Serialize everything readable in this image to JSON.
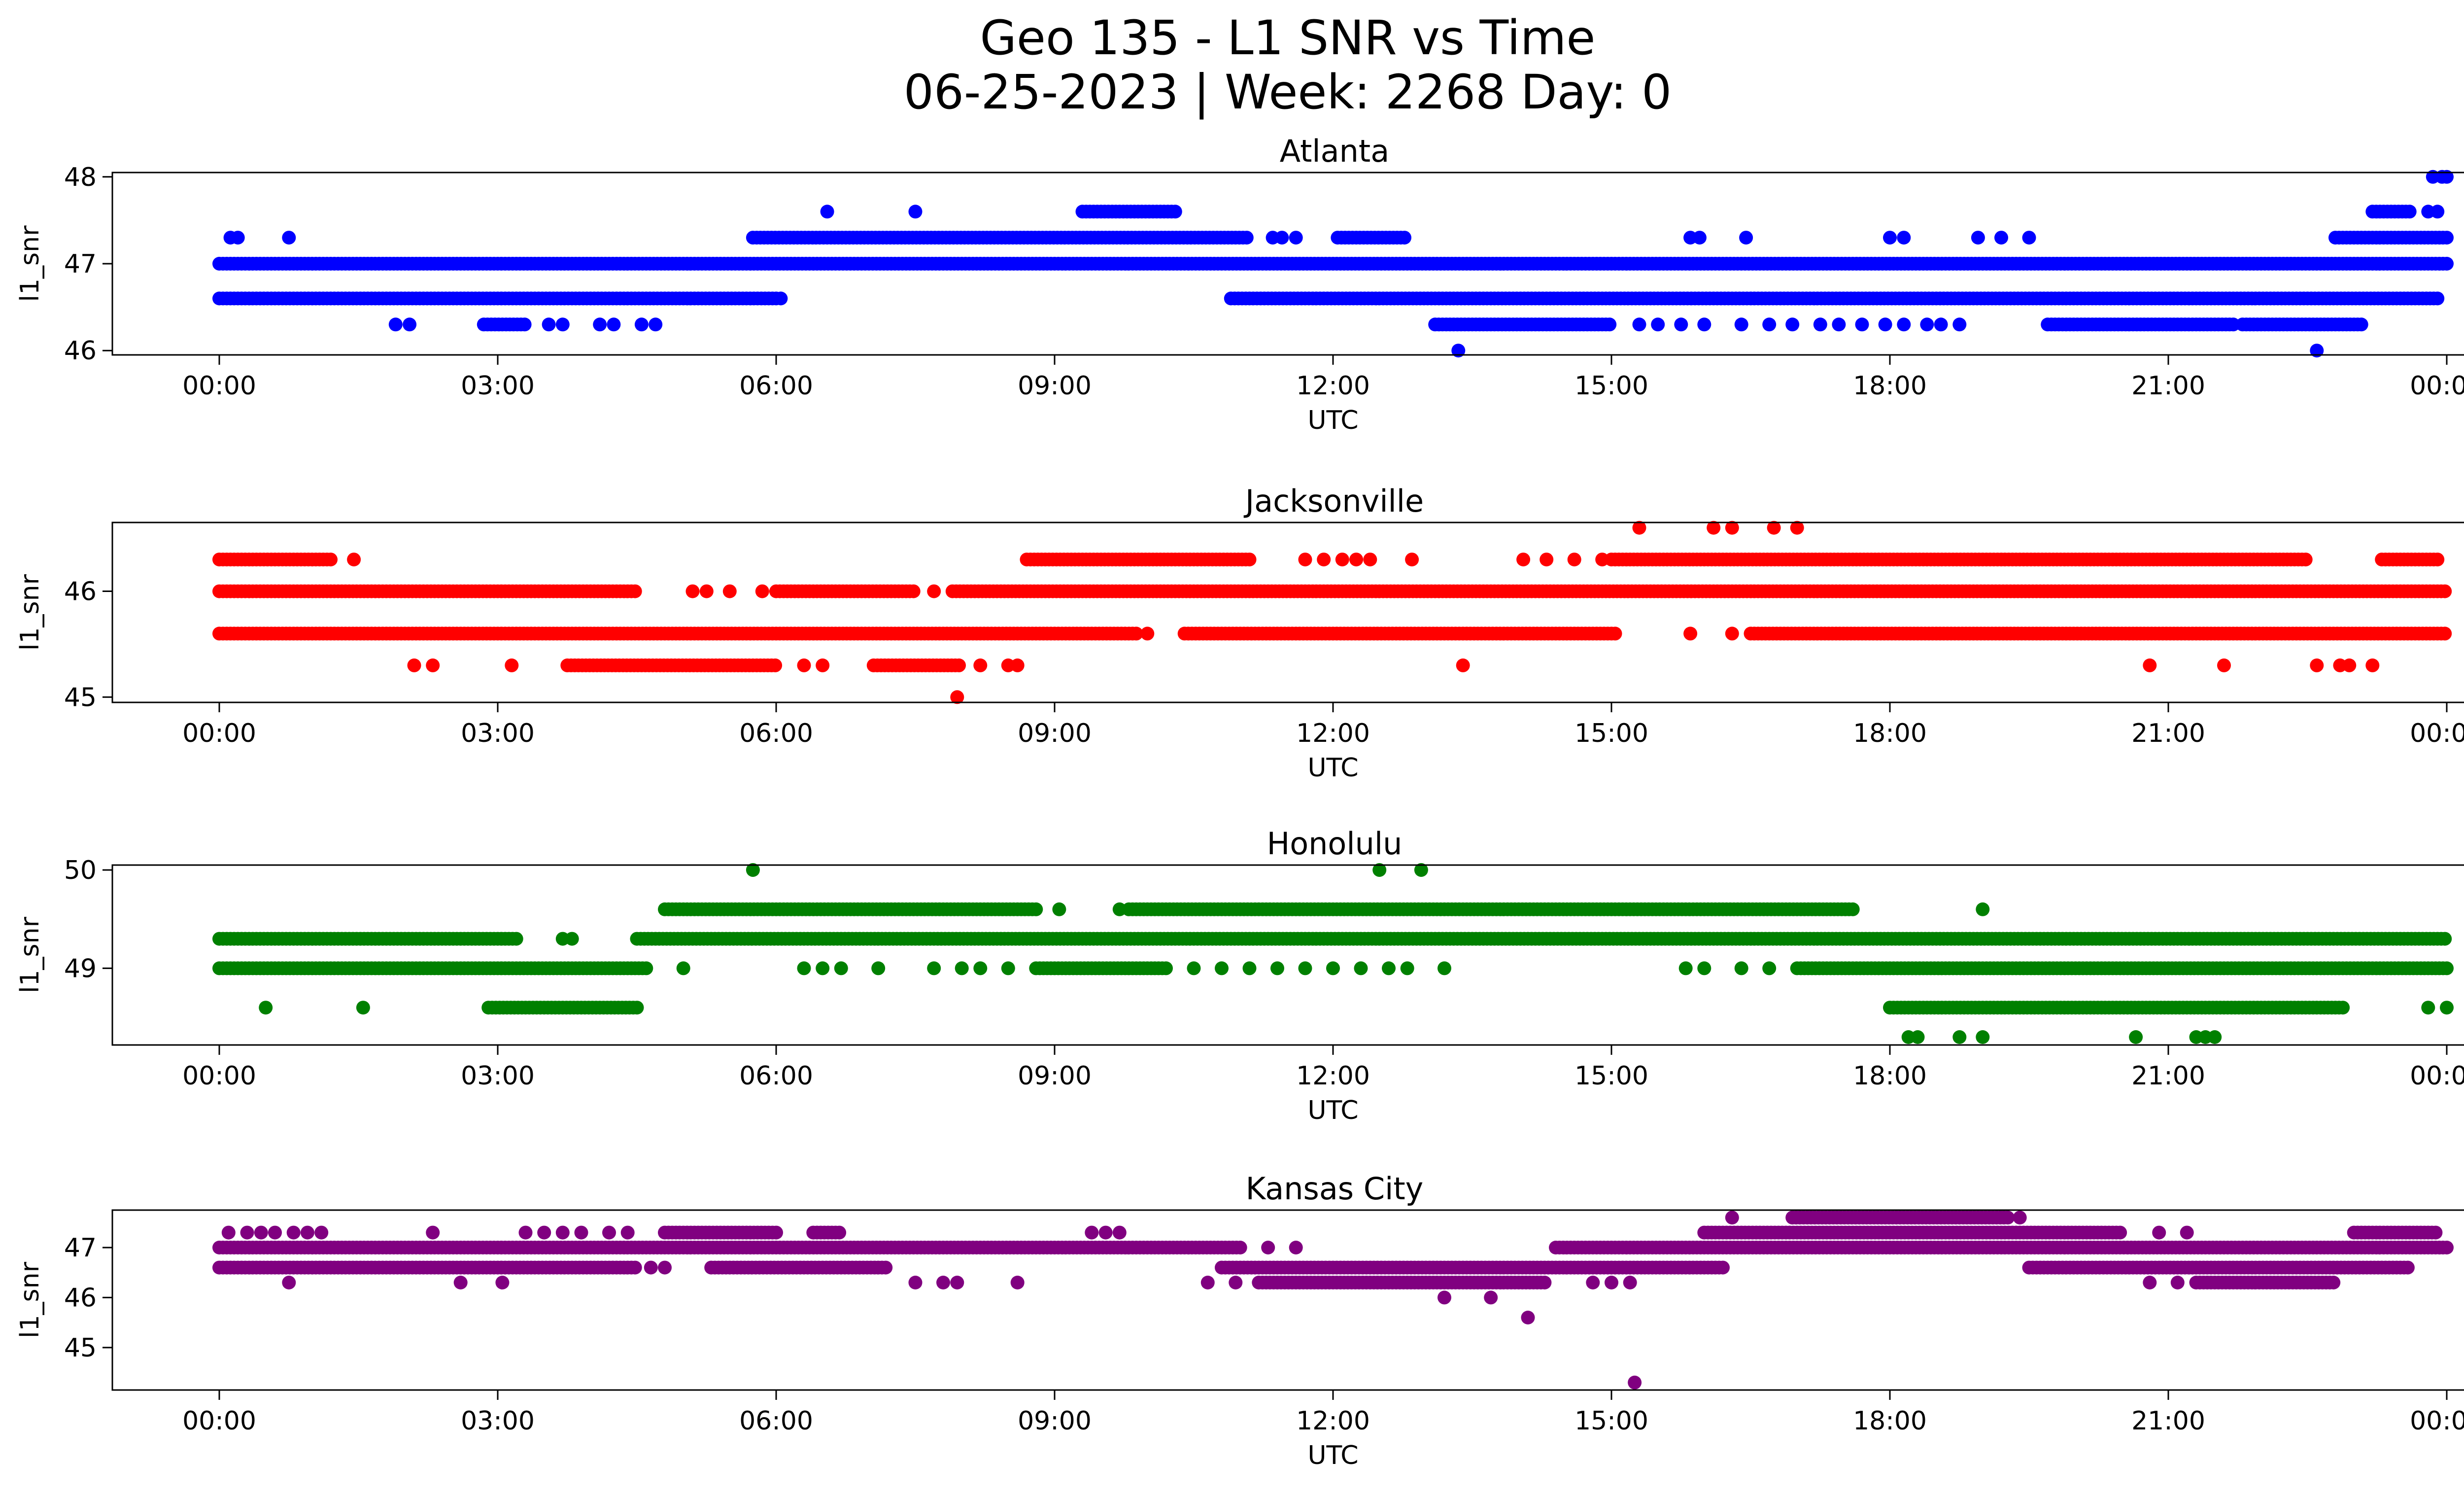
{
  "figure": {
    "title_line1": "Geo 135 - L1 SNR vs Time",
    "title_line2": "06-25-2023 | Week: 2268 Day: 0"
  },
  "chart_data": [
    {
      "type": "scatter",
      "title": "Atlanta",
      "color": "#0000ff",
      "xlabel": "UTC",
      "ylabel": "l1_snr",
      "xlim": [
        "00:00",
        "24:00"
      ],
      "ylim": [
        45.95,
        48.05
      ],
      "xticks": [
        "00:00",
        "03:00",
        "06:00",
        "09:00",
        "12:00",
        "15:00",
        "18:00",
        "21:00",
        "00:00"
      ],
      "yticks": [
        "46",
        "47",
        "48"
      ],
      "levels": [
        46.0,
        46.3,
        46.6,
        47.0,
        47.3,
        47.6,
        48.0
      ],
      "series": [
        {
          "y": 46.6,
          "ranges": [
            [
              0.0,
              6.0
            ],
            [
              10.9,
              23.9
            ]
          ],
          "x": [
            6.05
          ]
        },
        {
          "y": 47.0,
          "ranges": [
            [
              0.0,
              24.0
            ]
          ],
          "x": []
        },
        {
          "y": 46.3,
          "ranges": [
            [
              2.85,
              3.3
            ],
            [
              13.1,
              15.0
            ],
            [
              19.7,
              21.7
            ],
            [
              21.8,
              23.1
            ]
          ],
          "x": [
            1.9,
            2.05,
            3.55,
            3.7,
            4.1,
            4.25,
            4.55,
            4.7,
            15.3,
            15.5,
            15.75,
            16.0,
            16.4,
            16.7,
            16.95,
            17.25,
            17.45,
            17.7,
            17.95,
            18.15,
            18.4,
            18.55,
            18.75
          ]
        },
        {
          "y": 47.3,
          "ranges": [
            [
              5.75,
              11.1
            ],
            [
              12.05,
              12.8
            ],
            [
              22.8,
              24.0
            ]
          ],
          "x": [
            0.12,
            0.2,
            0.75,
            11.35,
            11.45,
            11.6,
            15.85,
            15.95,
            16.45,
            18.0,
            18.15,
            18.95,
            19.2,
            19.5
          ]
        },
        {
          "y": 47.6,
          "ranges": [
            [
              9.3,
              10.3
            ],
            [
              23.2,
              23.6
            ]
          ],
          "x": [
            6.55,
            7.5,
            23.8,
            23.9
          ]
        },
        {
          "y": 46.0,
          "x": [
            13.35,
            22.6
          ]
        },
        {
          "y": 48.0,
          "x": [
            23.85,
            23.95,
            24.0
          ]
        }
      ]
    },
    {
      "type": "scatter",
      "title": "Jacksonville",
      "color": "#ff0000",
      "xlabel": "UTC",
      "ylabel": "l1_snr",
      "xlim": [
        "00:00",
        "24:00"
      ],
      "ylim": [
        44.95,
        46.65
      ],
      "xticks": [
        "00:00",
        "03:00",
        "06:00",
        "09:00",
        "12:00",
        "15:00",
        "18:00",
        "21:00",
        "00:00"
      ],
      "yticks": [
        "45",
        "46"
      ],
      "levels": [
        45.0,
        45.3,
        45.6,
        46.0,
        46.3,
        46.6
      ],
      "series": [
        {
          "y": 46.0,
          "ranges": [
            [
              0.0,
              4.5
            ],
            [
              6.0,
              7.5
            ],
            [
              7.9,
              24.0
            ]
          ],
          "x": [
            5.1,
            5.25,
            5.5,
            5.85,
            7.7
          ]
        },
        {
          "y": 45.6,
          "ranges": [
            [
              0.0,
              9.9
            ],
            [
              10.4,
              15.05
            ],
            [
              16.5,
              24.0
            ]
          ],
          "x": [
            10.0,
            15.85,
            16.3
          ]
        },
        {
          "y": 46.3,
          "ranges": [
            [
              0.0,
              1.2
            ],
            [
              8.7,
              11.1
            ],
            [
              15.0,
              22.5
            ],
            [
              23.3,
              23.9
            ]
          ],
          "x": [
            1.45,
            11.7,
            11.9,
            12.1,
            12.25,
            12.4,
            12.85,
            14.05,
            14.3,
            14.6,
            14.9
          ]
        },
        {
          "y": 45.3,
          "ranges": [
            [
              3.75,
              6.0
            ],
            [
              7.05,
              8.0
            ]
          ],
          "x": [
            2.1,
            2.3,
            3.15,
            6.3,
            6.5,
            8.2,
            8.5,
            8.6,
            13.4,
            20.8,
            21.6,
            22.6,
            22.85,
            22.95,
            23.2
          ]
        },
        {
          "y": 46.6,
          "x": [
            15.3,
            16.1,
            16.3,
            16.75,
            17.0
          ]
        },
        {
          "y": 45.0,
          "x": [
            7.95
          ]
        }
      ]
    },
    {
      "type": "scatter",
      "title": "Honolulu",
      "color": "#008000",
      "xlabel": "UTC",
      "ylabel": "l1_snr",
      "xlim": [
        "00:00",
        "24:00"
      ],
      "ylim": [
        48.22,
        50.05
      ],
      "xticks": [
        "00:00",
        "03:00",
        "06:00",
        "09:00",
        "12:00",
        "15:00",
        "18:00",
        "21:00",
        "00:00"
      ],
      "yticks": [
        "49",
        "50"
      ],
      "levels": [
        48.3,
        48.6,
        49.0,
        49.3,
        49.6,
        50.0
      ],
      "series": [
        {
          "y": 49.3,
          "ranges": [
            [
              0.0,
              3.2
            ],
            [
              4.5,
              24.0
            ]
          ],
          "x": [
            3.7,
            3.8
          ]
        },
        {
          "y": 49.0,
          "ranges": [
            [
              0.0,
              4.6
            ],
            [
              8.8,
              10.2
            ],
            [
              17.0,
              24.0
            ]
          ],
          "x": [
            5.0,
            6.3,
            6.5,
            6.7,
            7.1,
            7.7,
            8.0,
            8.2,
            8.5,
            10.5,
            10.8,
            11.1,
            11.4,
            11.7,
            12.0,
            12.3,
            12.6,
            12.8,
            13.2,
            15.8,
            16.0,
            16.4,
            16.7
          ]
        },
        {
          "y": 49.6,
          "ranges": [
            [
              4.8,
              8.8
            ],
            [
              9.8,
              17.6
            ]
          ],
          "x": [
            9.05,
            9.7,
            19.0
          ]
        },
        {
          "y": 48.6,
          "ranges": [
            [
              2.9,
              4.5
            ],
            [
              18.0,
              22.9
            ]
          ],
          "x": [
            0.5,
            1.55,
            23.8,
            24.0
          ]
        },
        {
          "y": 48.3,
          "x": [
            18.2,
            18.3,
            18.75,
            19.0,
            20.65,
            21.3,
            21.4,
            21.5
          ]
        },
        {
          "y": 50.0,
          "x": [
            5.75,
            12.5,
            12.95
          ]
        }
      ]
    },
    {
      "type": "scatter",
      "title": "Kansas City",
      "color": "#800080",
      "xlabel": "UTC",
      "ylabel": "l1_snr",
      "xlim": [
        "00:00",
        "24:00"
      ],
      "ylim": [
        44.15,
        47.75
      ],
      "xticks": [
        "00:00",
        "03:00",
        "06:00",
        "09:00",
        "12:00",
        "15:00",
        "18:00",
        "21:00",
        "00:00"
      ],
      "yticks": [
        "45",
        "46",
        "47"
      ],
      "levels": [
        44.3,
        45.6,
        46.0,
        46.3,
        46.6,
        47.0,
        47.3,
        47.6
      ],
      "series": [
        {
          "y": 47.0,
          "ranges": [
            [
              0.0,
              11.0
            ],
            [
              14.4,
              24.0
            ]
          ],
          "x": [
            11.3,
            11.6
          ]
        },
        {
          "y": 46.6,
          "ranges": [
            [
              0.0,
              4.5
            ],
            [
              5.3,
              7.2
            ],
            [
              10.8,
              16.2
            ],
            [
              19.5,
              23.6
            ]
          ],
          "x": [
            4.65,
            4.8
          ]
        },
        {
          "y": 46.3,
          "ranges": [
            [
              11.2,
              14.3
            ],
            [
              21.3,
              22.8
            ]
          ],
          "x": [
            0.75,
            2.6,
            3.05,
            7.5,
            7.8,
            7.95,
            8.6,
            10.65,
            10.95,
            14.8,
            15.0,
            15.2,
            20.8,
            21.1
          ]
        },
        {
          "y": 47.3,
          "ranges": [
            [
              4.8,
              6.0
            ],
            [
              6.4,
              6.7
            ],
            [
              16.0,
              20.5
            ],
            [
              23.0,
              23.9
            ]
          ],
          "x": [
            0.1,
            0.3,
            0.45,
            0.6,
            0.8,
            0.95,
            1.1,
            2.3,
            3.3,
            3.5,
            3.7,
            3.9,
            4.2,
            4.4,
            9.4,
            9.55,
            9.7,
            20.9,
            21.2
          ]
        },
        {
          "y": 47.6,
          "ranges": [
            [
              16.95,
              19.3
            ]
          ],
          "x": [
            16.3,
            19.4
          ]
        },
        {
          "y": 46.0,
          "x": [
            13.2,
            13.7
          ]
        },
        {
          "y": 45.6,
          "x": [
            14.1
          ]
        },
        {
          "y": 44.3,
          "x": [
            15.25
          ]
        }
      ]
    }
  ]
}
